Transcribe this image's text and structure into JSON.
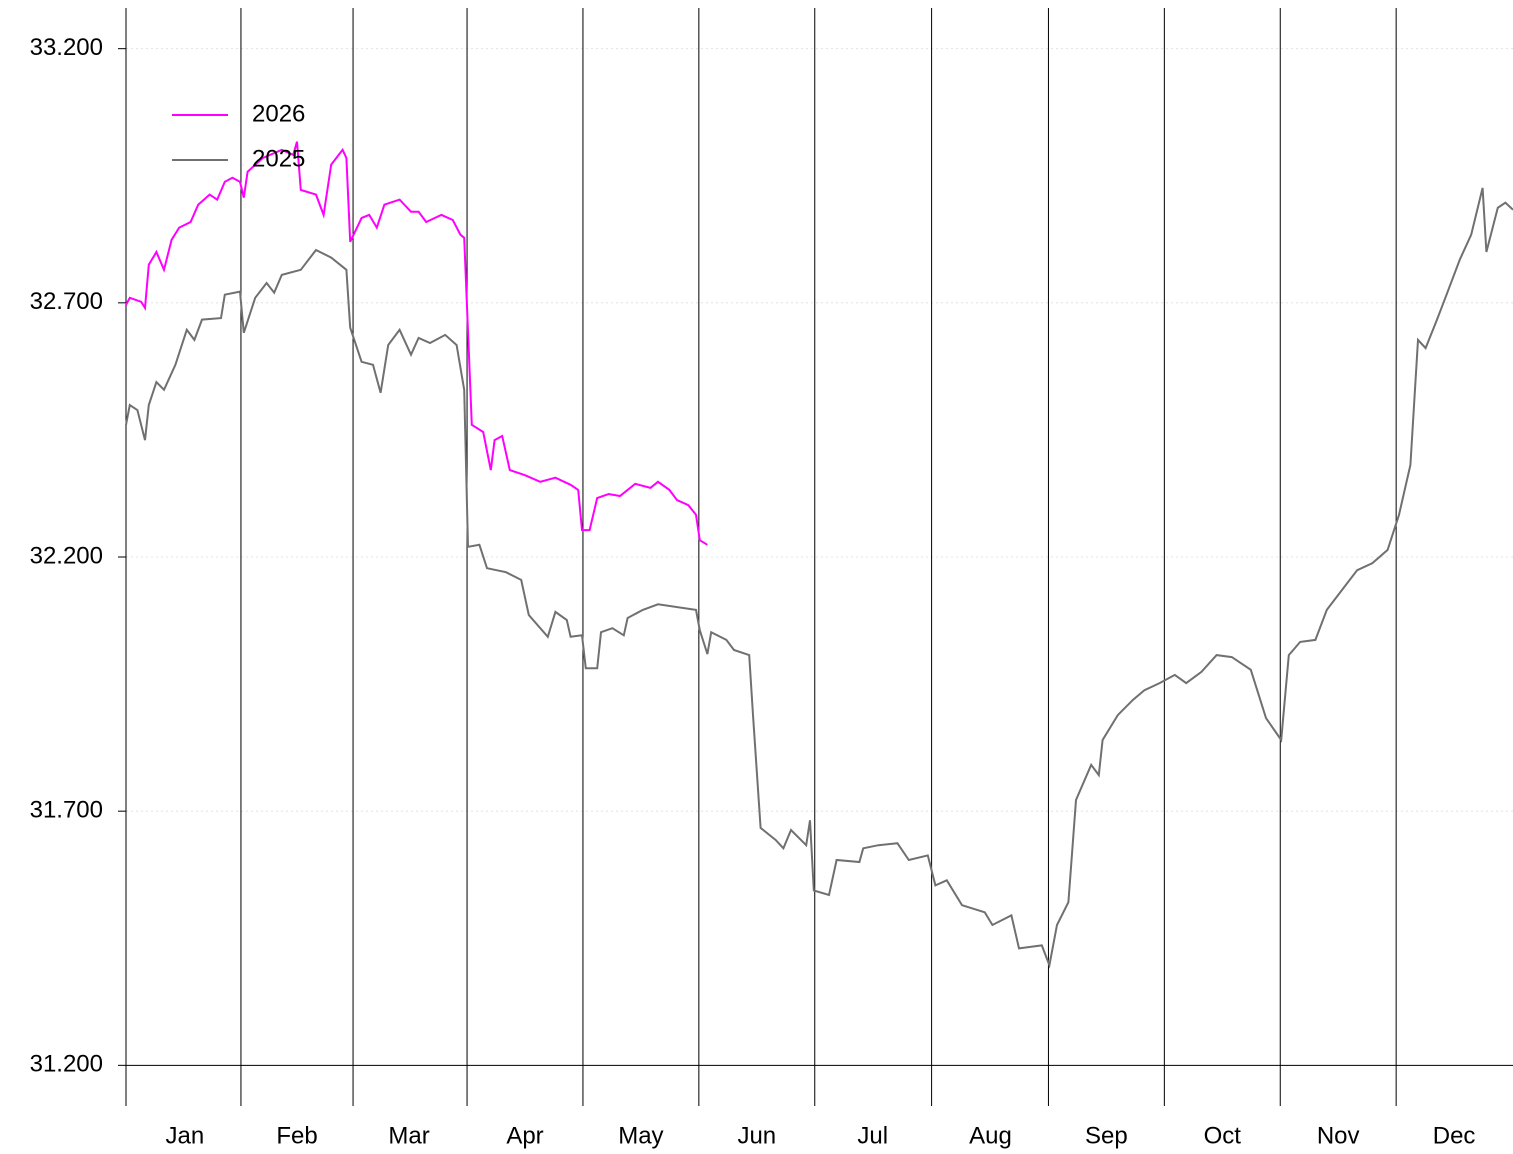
{
  "chart_data": {
    "type": "line",
    "xlim": [
      0,
      365
    ],
    "xticks": [
      {
        "value": 15.5,
        "label": "Jan"
      },
      {
        "value": 45,
        "label": "Feb"
      },
      {
        "value": 74.5,
        "label": "Mar"
      },
      {
        "value": 105,
        "label": "Apr"
      },
      {
        "value": 135.5,
        "label": "May"
      },
      {
        "value": 166,
        "label": "Jun"
      },
      {
        "value": 196.5,
        "label": "Jul"
      },
      {
        "value": 227.5,
        "label": "Aug"
      },
      {
        "value": 258,
        "label": "Sep"
      },
      {
        "value": 288.5,
        "label": "Oct"
      },
      {
        "value": 319,
        "label": "Nov"
      },
      {
        "value": 349.5,
        "label": "Dec"
      }
    ],
    "ylim": [
      31.12,
      33.28
    ],
    "yticks": [
      {
        "value": 31.2,
        "label": "31.200"
      },
      {
        "value": 31.7,
        "label": "31.700"
      },
      {
        "value": 32.2,
        "label": "32.200"
      },
      {
        "value": 32.7,
        "label": "32.700"
      },
      {
        "value": 33.2,
        "label": "33.200"
      }
    ],
    "grid": true,
    "legend": "upper left",
    "series": [
      {
        "name": "2026",
        "color": "#ff00ff",
        "x": [
          0,
          1,
          4,
          5,
          6,
          8,
          10,
          12,
          14,
          17,
          19,
          22,
          24,
          26,
          28,
          30,
          31,
          32,
          36,
          41,
          44,
          45,
          46,
          50,
          52,
          54,
          57,
          58,
          59,
          62,
          64,
          66,
          68,
          72,
          75,
          77,
          79,
          83,
          86,
          88,
          89,
          91,
          94,
          96,
          97,
          99,
          101,
          105,
          109,
          113,
          117,
          119,
          120,
          122,
          124,
          127,
          130,
          134,
          138,
          140,
          143,
          145,
          148,
          150,
          151,
          153
        ],
        "values": [
          32.696,
          32.71,
          32.702,
          32.69,
          32.775,
          32.8,
          32.765,
          32.824,
          32.848,
          32.859,
          32.893,
          32.913,
          32.903,
          32.938,
          32.946,
          32.938,
          32.907,
          32.958,
          32.985,
          33.001,
          32.991,
          33.017,
          32.922,
          32.913,
          32.873,
          32.972,
          33.001,
          32.985,
          32.82,
          32.867,
          32.873,
          32.848,
          32.893,
          32.903,
          32.879,
          32.879,
          32.859,
          32.873,
          32.863,
          32.834,
          32.828,
          32.46,
          32.446,
          32.371,
          32.43,
          32.438,
          32.371,
          32.361,
          32.348,
          32.356,
          32.342,
          32.332,
          32.253,
          32.253,
          32.316,
          32.324,
          32.32,
          32.344,
          32.336,
          32.348,
          32.332,
          32.312,
          32.302,
          32.283,
          32.233,
          32.224
        ]
      },
      {
        "name": "2025",
        "color": "#707070",
        "x": [
          0,
          1,
          3,
          5,
          6,
          8,
          10,
          13,
          16,
          18,
          20,
          25,
          26,
          30,
          31,
          34,
          37,
          39,
          41,
          46,
          50,
          54,
          58,
          59,
          62,
          65,
          67,
          69,
          72,
          75,
          77,
          80,
          84,
          87,
          89,
          90,
          93,
          95,
          100,
          104,
          106,
          111,
          113,
          116,
          117,
          120,
          121,
          124,
          125,
          128,
          131,
          132,
          136,
          140,
          150,
          151,
          153,
          154,
          158,
          160,
          164,
          165,
          167,
          171,
          173,
          175,
          179,
          180,
          181,
          185,
          187,
          193,
          194,
          198,
          203,
          206,
          211,
          213,
          216,
          220,
          226,
          228,
          233,
          235,
          241,
          243,
          245,
          248,
          250,
          254,
          256,
          257,
          261,
          265,
          268,
          272,
          276,
          279,
          283,
          287,
          291,
          296,
          300,
          304,
          306,
          309,
          313,
          316,
          321,
          324,
          328,
          332,
          335,
          338,
          340,
          342,
          345,
          347,
          351,
          354,
          357,
          358,
          361,
          363,
          365
        ],
        "values": [
          32.46,
          32.499,
          32.489,
          32.43,
          32.499,
          32.544,
          32.529,
          32.578,
          32.647,
          32.627,
          32.667,
          32.67,
          32.716,
          32.722,
          32.641,
          32.71,
          32.739,
          32.72,
          32.755,
          32.765,
          32.804,
          32.789,
          32.765,
          32.651,
          32.584,
          32.578,
          32.523,
          32.617,
          32.647,
          32.598,
          32.631,
          32.621,
          32.637,
          32.617,
          32.529,
          32.22,
          32.224,
          32.178,
          32.17,
          32.155,
          32.086,
          32.043,
          32.092,
          32.076,
          32.043,
          32.046,
          31.981,
          31.981,
          32.052,
          32.06,
          32.046,
          32.08,
          32.096,
          32.107,
          32.096,
          32.056,
          32.009,
          32.052,
          32.037,
          32.017,
          32.007,
          31.889,
          31.667,
          31.643,
          31.627,
          31.663,
          31.633,
          31.682,
          31.544,
          31.535,
          31.604,
          31.6,
          31.627,
          31.633,
          31.637,
          31.604,
          31.613,
          31.554,
          31.564,
          31.515,
          31.501,
          31.476,
          31.495,
          31.43,
          31.436,
          31.397,
          31.476,
          31.521,
          31.722,
          31.791,
          31.771,
          31.84,
          31.889,
          31.919,
          31.938,
          31.952,
          31.968,
          31.952,
          31.974,
          32.007,
          32.003,
          31.978,
          31.883,
          31.84,
          32.007,
          32.033,
          32.037,
          32.096,
          32.145,
          32.174,
          32.188,
          32.214,
          32.283,
          32.381,
          32.627,
          32.611,
          32.667,
          32.706,
          32.785,
          32.834,
          32.926,
          32.8,
          32.887,
          32.897,
          32.883
        ]
      }
    ]
  }
}
